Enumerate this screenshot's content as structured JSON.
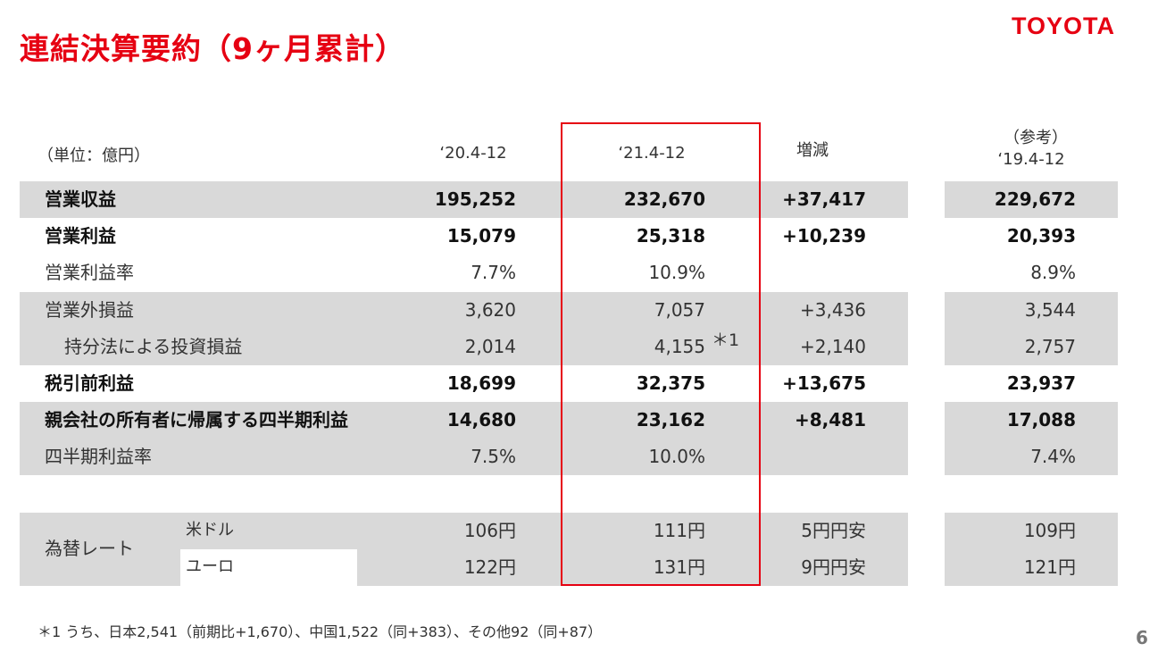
{
  "title": "連結決算要約（9ヶ月累計）",
  "logo": "TOYOTA",
  "header": {
    "unit": "（単位：億円）",
    "col1": "‘20.4-12",
    "col2": "‘21.4-12",
    "col3": "増減",
    "col4_note": "（参考）",
    "col4": "‘19.4-12"
  },
  "rows": [
    {
      "label": "営業収益",
      "c1": "195,252",
      "c2": "232,670",
      "c3": "+37,417",
      "c4": "229,672"
    },
    {
      "label": "営業利益",
      "c1": "15,079",
      "c2": "25,318",
      "c3": "+10,239",
      "c4": "20,393"
    },
    {
      "label": "営業利益率",
      "c1": "7.7%",
      "c2": "10.9%",
      "c3": "",
      "c4": "8.9%"
    },
    {
      "label": "営業外損益",
      "c1": "3,620",
      "c2": "7,057",
      "c3": "+3,436",
      "c4": "3,544"
    },
    {
      "label": "持分法による投資損益",
      "c1": "2,014",
      "c2": "4,155",
      "c3": "+2,140",
      "c4": "2,757",
      "note_mark": "＊1"
    },
    {
      "label": "税引前利益",
      "c1": "18,699",
      "c2": "32,375",
      "c3": "+13,675",
      "c4": "23,937"
    },
    {
      "label": "親会社の所有者に帰属する四半期利益",
      "c1": "14,680",
      "c2": "23,162",
      "c3": "+8,481",
      "c4": "17,088"
    },
    {
      "label": "四半期利益率",
      "c1": "7.5%",
      "c2": "10.0%",
      "c3": "",
      "c4": "7.4%"
    }
  ],
  "fx": {
    "label": "為替レート",
    "rows": [
      {
        "label": "米ドル",
        "c1": "106円",
        "c2": "111円",
        "c3": "5円円安",
        "c4": "109円"
      },
      {
        "label": "ユーロ",
        "c1": "122円",
        "c2": "131円",
        "c3": "9円円安",
        "c4": "121円"
      }
    ]
  },
  "footnote": "＊1 うち、日本2,541（前期比+1,670）、中国1,522（同+383）、その他92（同+87）",
  "page_number": "6",
  "colors": {
    "accent_red": "#e60012",
    "band_gray": "#d9d9d9"
  }
}
